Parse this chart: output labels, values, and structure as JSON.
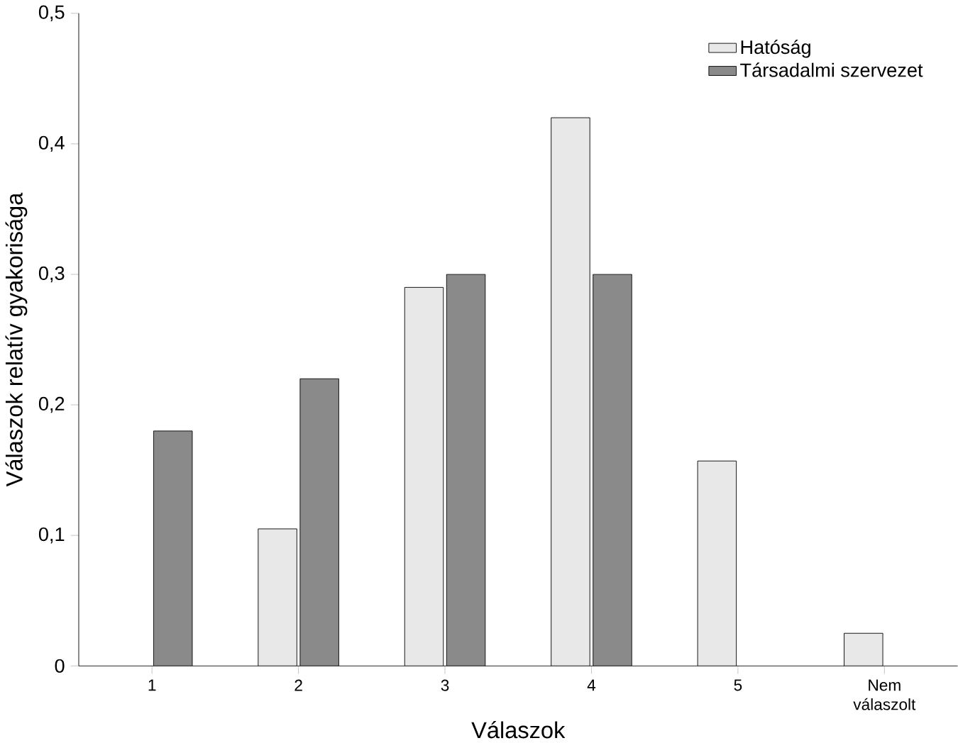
{
  "chart_data": {
    "type": "bar",
    "xlabel": "Válaszok",
    "ylabel": "Válaszok relatív gyakorisága",
    "categories": [
      "1",
      "2",
      "3",
      "4",
      "5",
      "Nem válaszolt"
    ],
    "series": [
      {
        "name": "Hatóság",
        "color": "#e8e8e8",
        "values": [
          null,
          0.105,
          0.29,
          0.42,
          0.157,
          0.025
        ]
      },
      {
        "name": "Társadalmi szervezet",
        "color": "#8a8a8a",
        "values": [
          0.18,
          0.22,
          0.3,
          0.3,
          null,
          null
        ]
      }
    ],
    "ylim": [
      0,
      0.5
    ],
    "yticks": [
      {
        "value": 0,
        "label": "0"
      },
      {
        "value": 0.1,
        "label": "0,1"
      },
      {
        "value": 0.2,
        "label": "0,2"
      },
      {
        "value": 0.3,
        "label": "0,3"
      },
      {
        "value": 0.4,
        "label": "0,4"
      },
      {
        "value": 0.5,
        "label": "0,5"
      }
    ],
    "legend": "top right",
    "grid": false
  }
}
